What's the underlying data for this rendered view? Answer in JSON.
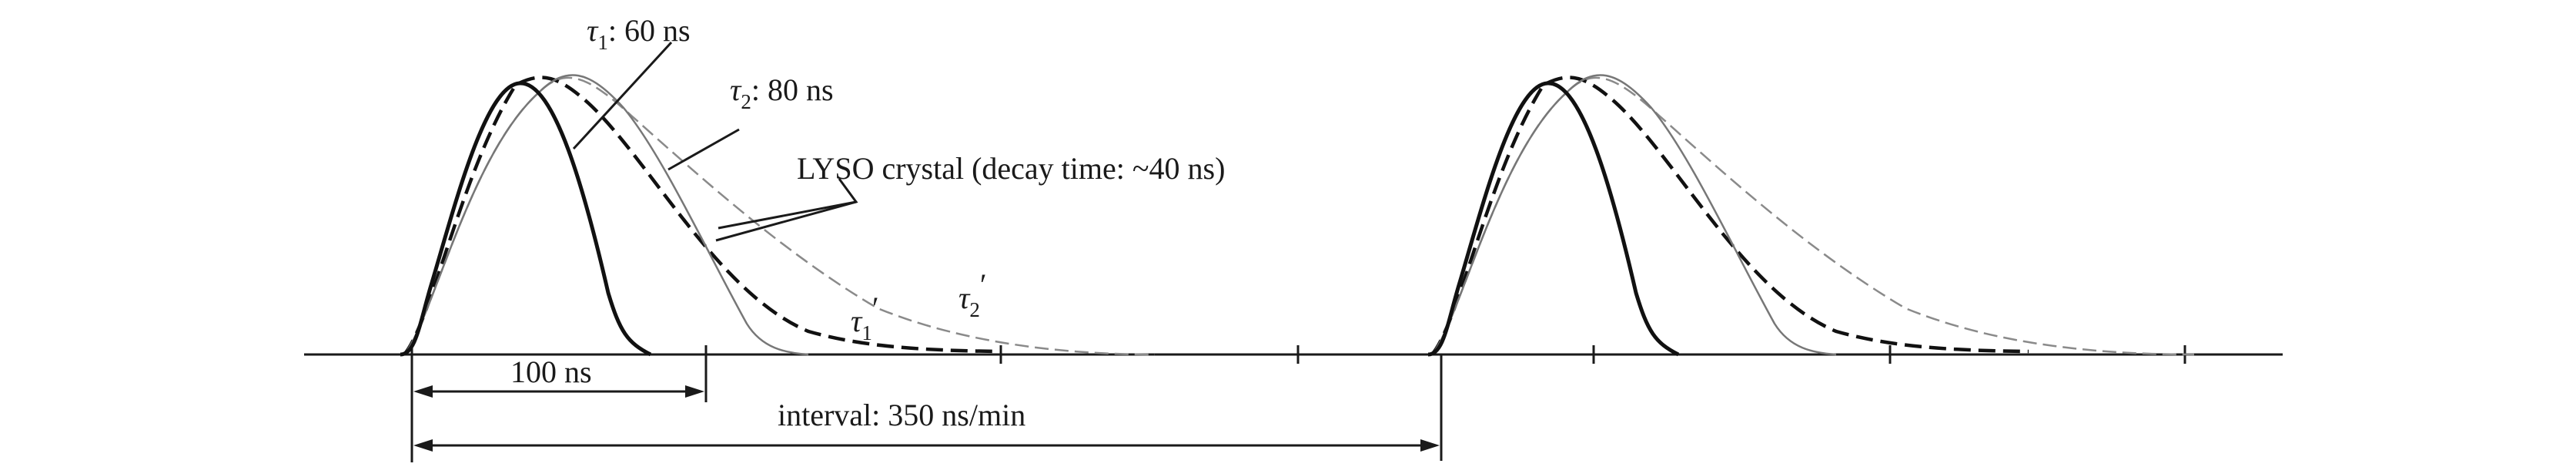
{
  "labels": {
    "tau1_symbol": "τ",
    "tau1_sub": "1",
    "tau1_value": ": 60 ns",
    "tau2_symbol": "τ",
    "tau2_sub": "2",
    "tau2_value": ": 80 ns",
    "lyso": "LYSO crystal (decay time: ~40 ns)",
    "tau1p_symbol": "τ",
    "tau1p_sub": "1",
    "tau1p_prime": "′",
    "tau2p_symbol": "τ",
    "tau2p_sub": "2",
    "tau2p_prime": "′",
    "span_100": "100 ns",
    "interval": "interval: 350 ns/min"
  },
  "colors": {
    "axis": "#1a1a1a",
    "crystal_pulse": "#111111",
    "tau1_pulse": "#777777",
    "tau1_shaped": "#111111",
    "tau2_shaped": "#8a8a8a"
  }
}
